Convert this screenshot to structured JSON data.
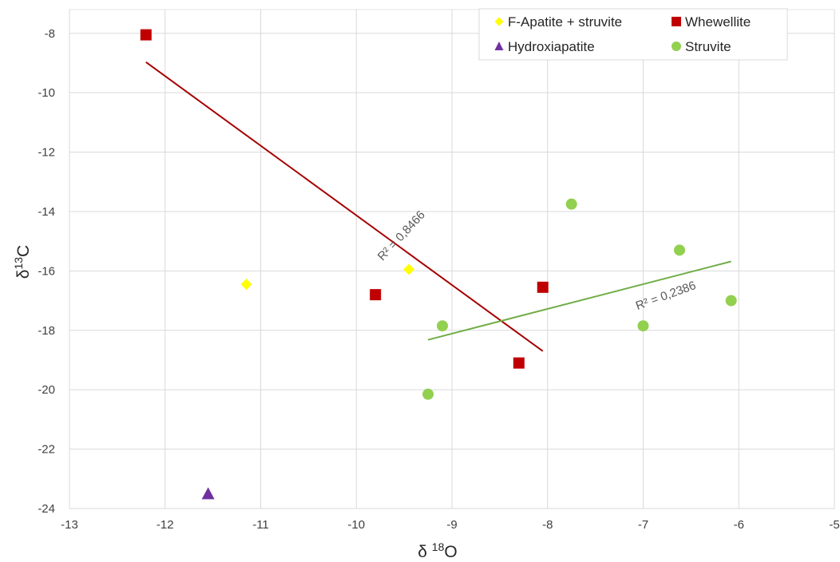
{
  "chart_data": {
    "type": "scatter",
    "title": "",
    "xlabel": {
      "base": "δ ",
      "sup": "18",
      "tail": "O"
    },
    "ylabel": {
      "base": "δ",
      "sup": "13",
      "tail": "C"
    },
    "xlim": [
      -13,
      -5
    ],
    "ylim": [
      -24,
      -7.2
    ],
    "xticks": [
      -13,
      -12,
      -11,
      -10,
      -9,
      -8,
      -7,
      -6,
      -5
    ],
    "yticks": [
      -24,
      -22,
      -20,
      -18,
      -16,
      -14,
      -12,
      -10,
      -8
    ],
    "grid": true,
    "legend_position": "top-right",
    "series": [
      {
        "name": "F-Apatite + struvite",
        "marker": "diamond",
        "color": "#FFFF00",
        "points": [
          {
            "x": -11.15,
            "y": -16.45
          },
          {
            "x": -9.45,
            "y": -15.95
          }
        ]
      },
      {
        "name": "Whewellite",
        "marker": "square",
        "color": "#C00000",
        "points": [
          {
            "x": -12.2,
            "y": -8.05
          },
          {
            "x": -9.8,
            "y": -16.8
          },
          {
            "x": -8.3,
            "y": -19.1
          },
          {
            "x": -8.05,
            "y": -16.55
          }
        ]
      },
      {
        "name": "Hydroxiapatite",
        "marker": "triangle",
        "color": "#7030A0",
        "points": [
          {
            "x": -11.55,
            "y": -23.5
          }
        ]
      },
      {
        "name": "Struvite",
        "marker": "circle",
        "color": "#92D050",
        "points": [
          {
            "x": -9.25,
            "y": -20.15
          },
          {
            "x": -9.1,
            "y": -17.85
          },
          {
            "x": -7.75,
            "y": -13.75
          },
          {
            "x": -7.0,
            "y": -17.85
          },
          {
            "x": -6.62,
            "y": -15.3
          },
          {
            "x": -6.08,
            "y": -17.0
          }
        ]
      }
    ],
    "trendlines": [
      {
        "series": "Whewellite",
        "color": "#A50000",
        "x1": -12.2,
        "y1": -8.97,
        "x2": -8.05,
        "y2": -18.7,
        "label": "R² = 0,8466",
        "label_at": {
          "x": -9.5,
          "y": -14.9
        },
        "label_angle": -47
      },
      {
        "series": "Struvite",
        "color": "#70AD47",
        "x1": -9.25,
        "y1": -18.32,
        "x2": -6.08,
        "y2": -15.68,
        "label": "R² = 0,2386",
        "label_at": {
          "x": -6.75,
          "y": -16.95
        },
        "label_angle": -20
      }
    ]
  }
}
